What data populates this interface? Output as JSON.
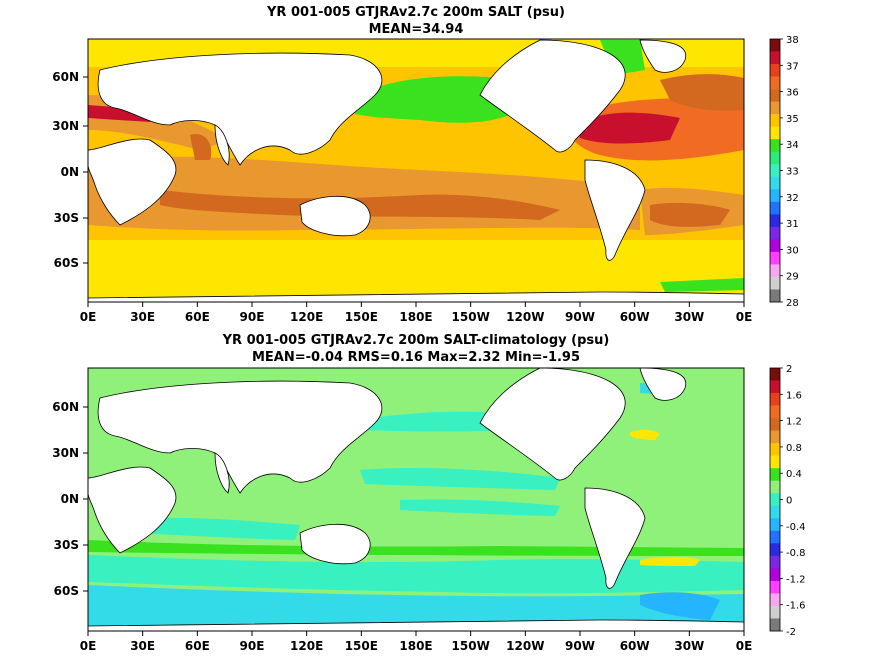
{
  "chart_data": [
    {
      "type": "heatmap",
      "title": "YR 001-005 GTJRAv2.7c 200m SALT (psu)",
      "subtitle": "MEAN=34.94",
      "x_ticks": [
        "0E",
        "30E",
        "60E",
        "90E",
        "120E",
        "150E",
        "180E",
        "150W",
        "120W",
        "90W",
        "60W",
        "30W",
        "0E"
      ],
      "y_ticks": [
        "60N",
        "30N",
        "0N",
        "30S",
        "60S"
      ],
      "xlim": [
        0,
        360
      ],
      "ylim": [
        -78,
        90
      ],
      "colorbar": {
        "ticks": [
          "38",
          "37",
          "36",
          "35",
          "34",
          "33",
          "32",
          "31",
          "30",
          "29",
          "28"
        ],
        "colors": [
          "#7a0c0c",
          "#c8102e",
          "#e8401c",
          "#f26b22",
          "#d2691e",
          "#e8982e",
          "#ffc400",
          "#ffe600",
          "#39e11e",
          "#2eea7a",
          "#38f0c0",
          "#33dbe8",
          "#25b5ff",
          "#1f73ff",
          "#2a2ae0",
          "#7a28e6",
          "#b000e0",
          "#ff3dff",
          "#f7a7f0",
          "#cfcfcf",
          "#7a7a7a"
        ]
      },
      "mean": 34.94
    },
    {
      "type": "heatmap",
      "title": "YR 001-005 GTJRAv2.7c 200m SALT-climatology (psu)",
      "subtitle": "MEAN=-0.04   RMS=0.16   Max=2.32   Min=-1.95",
      "x_ticks": [
        "0E",
        "30E",
        "60E",
        "90E",
        "120E",
        "150E",
        "180E",
        "150W",
        "120W",
        "90W",
        "60W",
        "30W",
        "0E"
      ],
      "y_ticks": [
        "60N",
        "30N",
        "0N",
        "30S",
        "60S"
      ],
      "xlim": [
        0,
        360
      ],
      "ylim": [
        -78,
        90
      ],
      "colorbar": {
        "ticks": [
          "2",
          "1.6",
          "1.2",
          "0.8",
          "0.4",
          "0",
          "-0.4",
          "-0.8",
          "-1.2",
          "-1.6",
          "-2"
        ],
        "colors": [
          "#7a0c0c",
          "#c8102e",
          "#e8401c",
          "#f26b22",
          "#d2691e",
          "#e8982e",
          "#ffc400",
          "#ffe600",
          "#39e11e",
          "#8ff07a",
          "#38f0c0",
          "#33dbe8",
          "#25b5ff",
          "#1f73ff",
          "#2a2ae0",
          "#7a28e6",
          "#b000e0",
          "#ff3dff",
          "#f7a7f0",
          "#cfcfcf",
          "#7a7a7a"
        ]
      },
      "mean": -0.04,
      "rms": 0.16,
      "max": 2.32,
      "min": -1.95
    }
  ],
  "colors": {
    "panel1_background": "#ffc400",
    "panel1_bands": [
      "#ffe600",
      "#e8982e",
      "#d2691e",
      "#c8102e",
      "#f26b22",
      "#39e11e"
    ],
    "panel2_background": "#8ff07a",
    "panel2_bands": [
      "#39e11e",
      "#38f0c0",
      "#33dbe8",
      "#25b5ff",
      "#ffe600",
      "#ffc400"
    ],
    "land": "#ffffff",
    "coast": "#000000"
  }
}
